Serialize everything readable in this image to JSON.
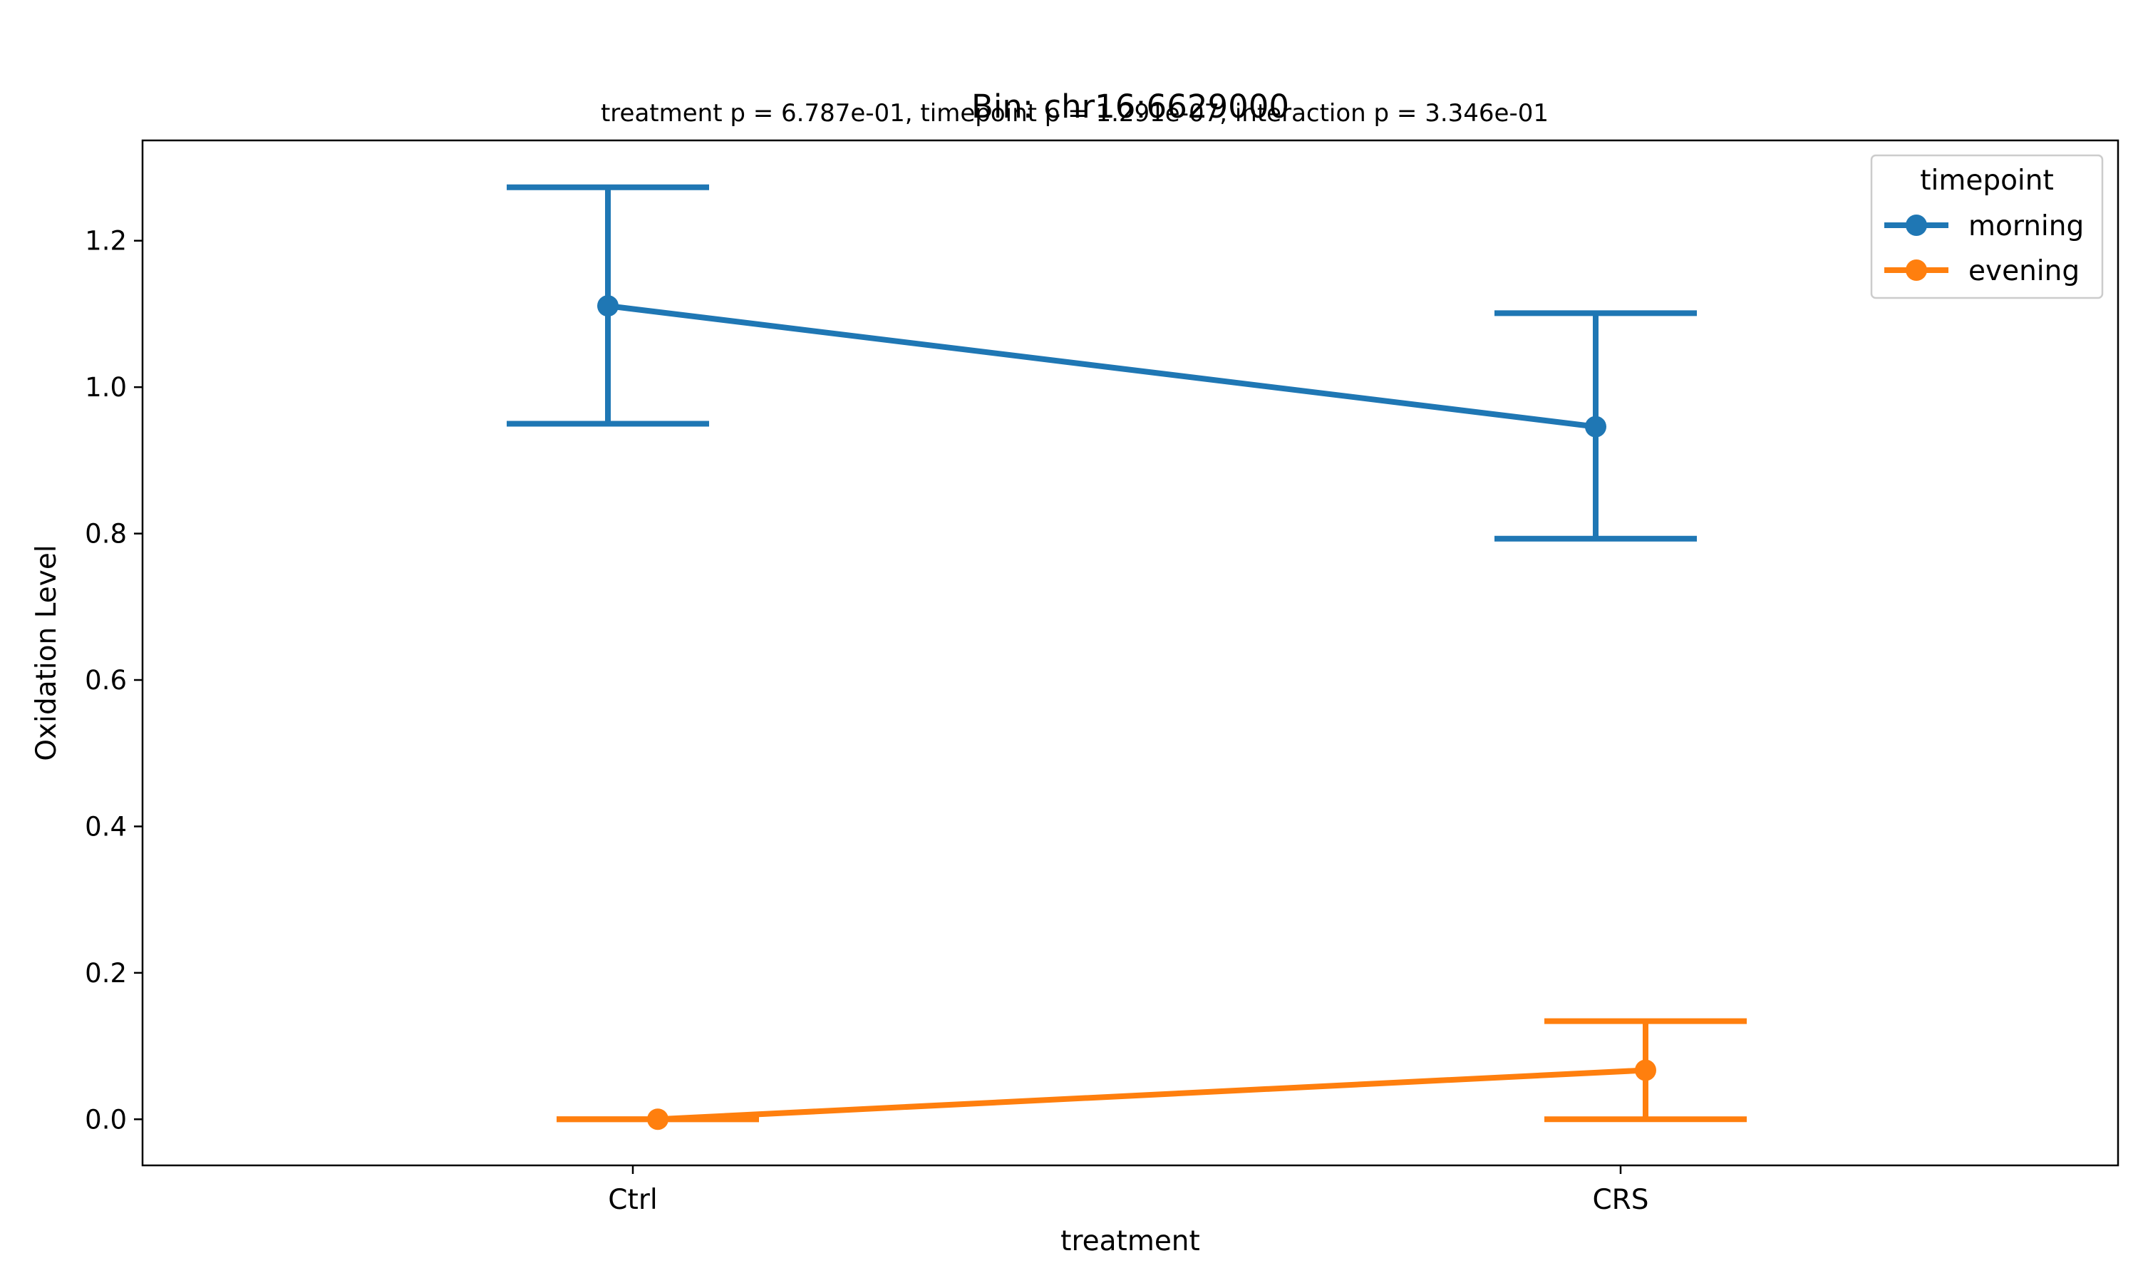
{
  "chart_data": {
    "type": "line",
    "title": "Bin: chr16:6629000",
    "subtitle": "treatment p = 6.787e-01, timepoint p = 1.291e-07, interaction p = 3.346e-01",
    "xlabel": "treatment",
    "ylabel": "Oxidation Level",
    "categories": [
      "Ctrl",
      "CRS"
    ],
    "ylim": [
      -0.063,
      1.337
    ],
    "yticks": [
      0.0,
      0.2,
      0.4,
      0.6,
      0.8,
      1.0,
      1.2
    ],
    "ytick_labels": [
      "0.0",
      "0.2",
      "0.4",
      "0.6",
      "0.8",
      "1.0",
      "1.2"
    ],
    "grid": false,
    "legend": {
      "title": "timepoint",
      "placement": "top-right"
    },
    "series": [
      {
        "name": "morning",
        "color": "#1f77b4",
        "values": [
          1.111,
          0.946
        ],
        "ci_low": [
          0.95,
          0.793
        ],
        "ci_high": [
          1.273,
          1.101
        ]
      },
      {
        "name": "evening",
        "color": "#ff7f0e",
        "values": [
          0.0,
          0.067
        ],
        "ci_low": [
          0.0,
          0.0
        ],
        "ci_high": [
          0.0,
          0.134
        ]
      }
    ]
  }
}
